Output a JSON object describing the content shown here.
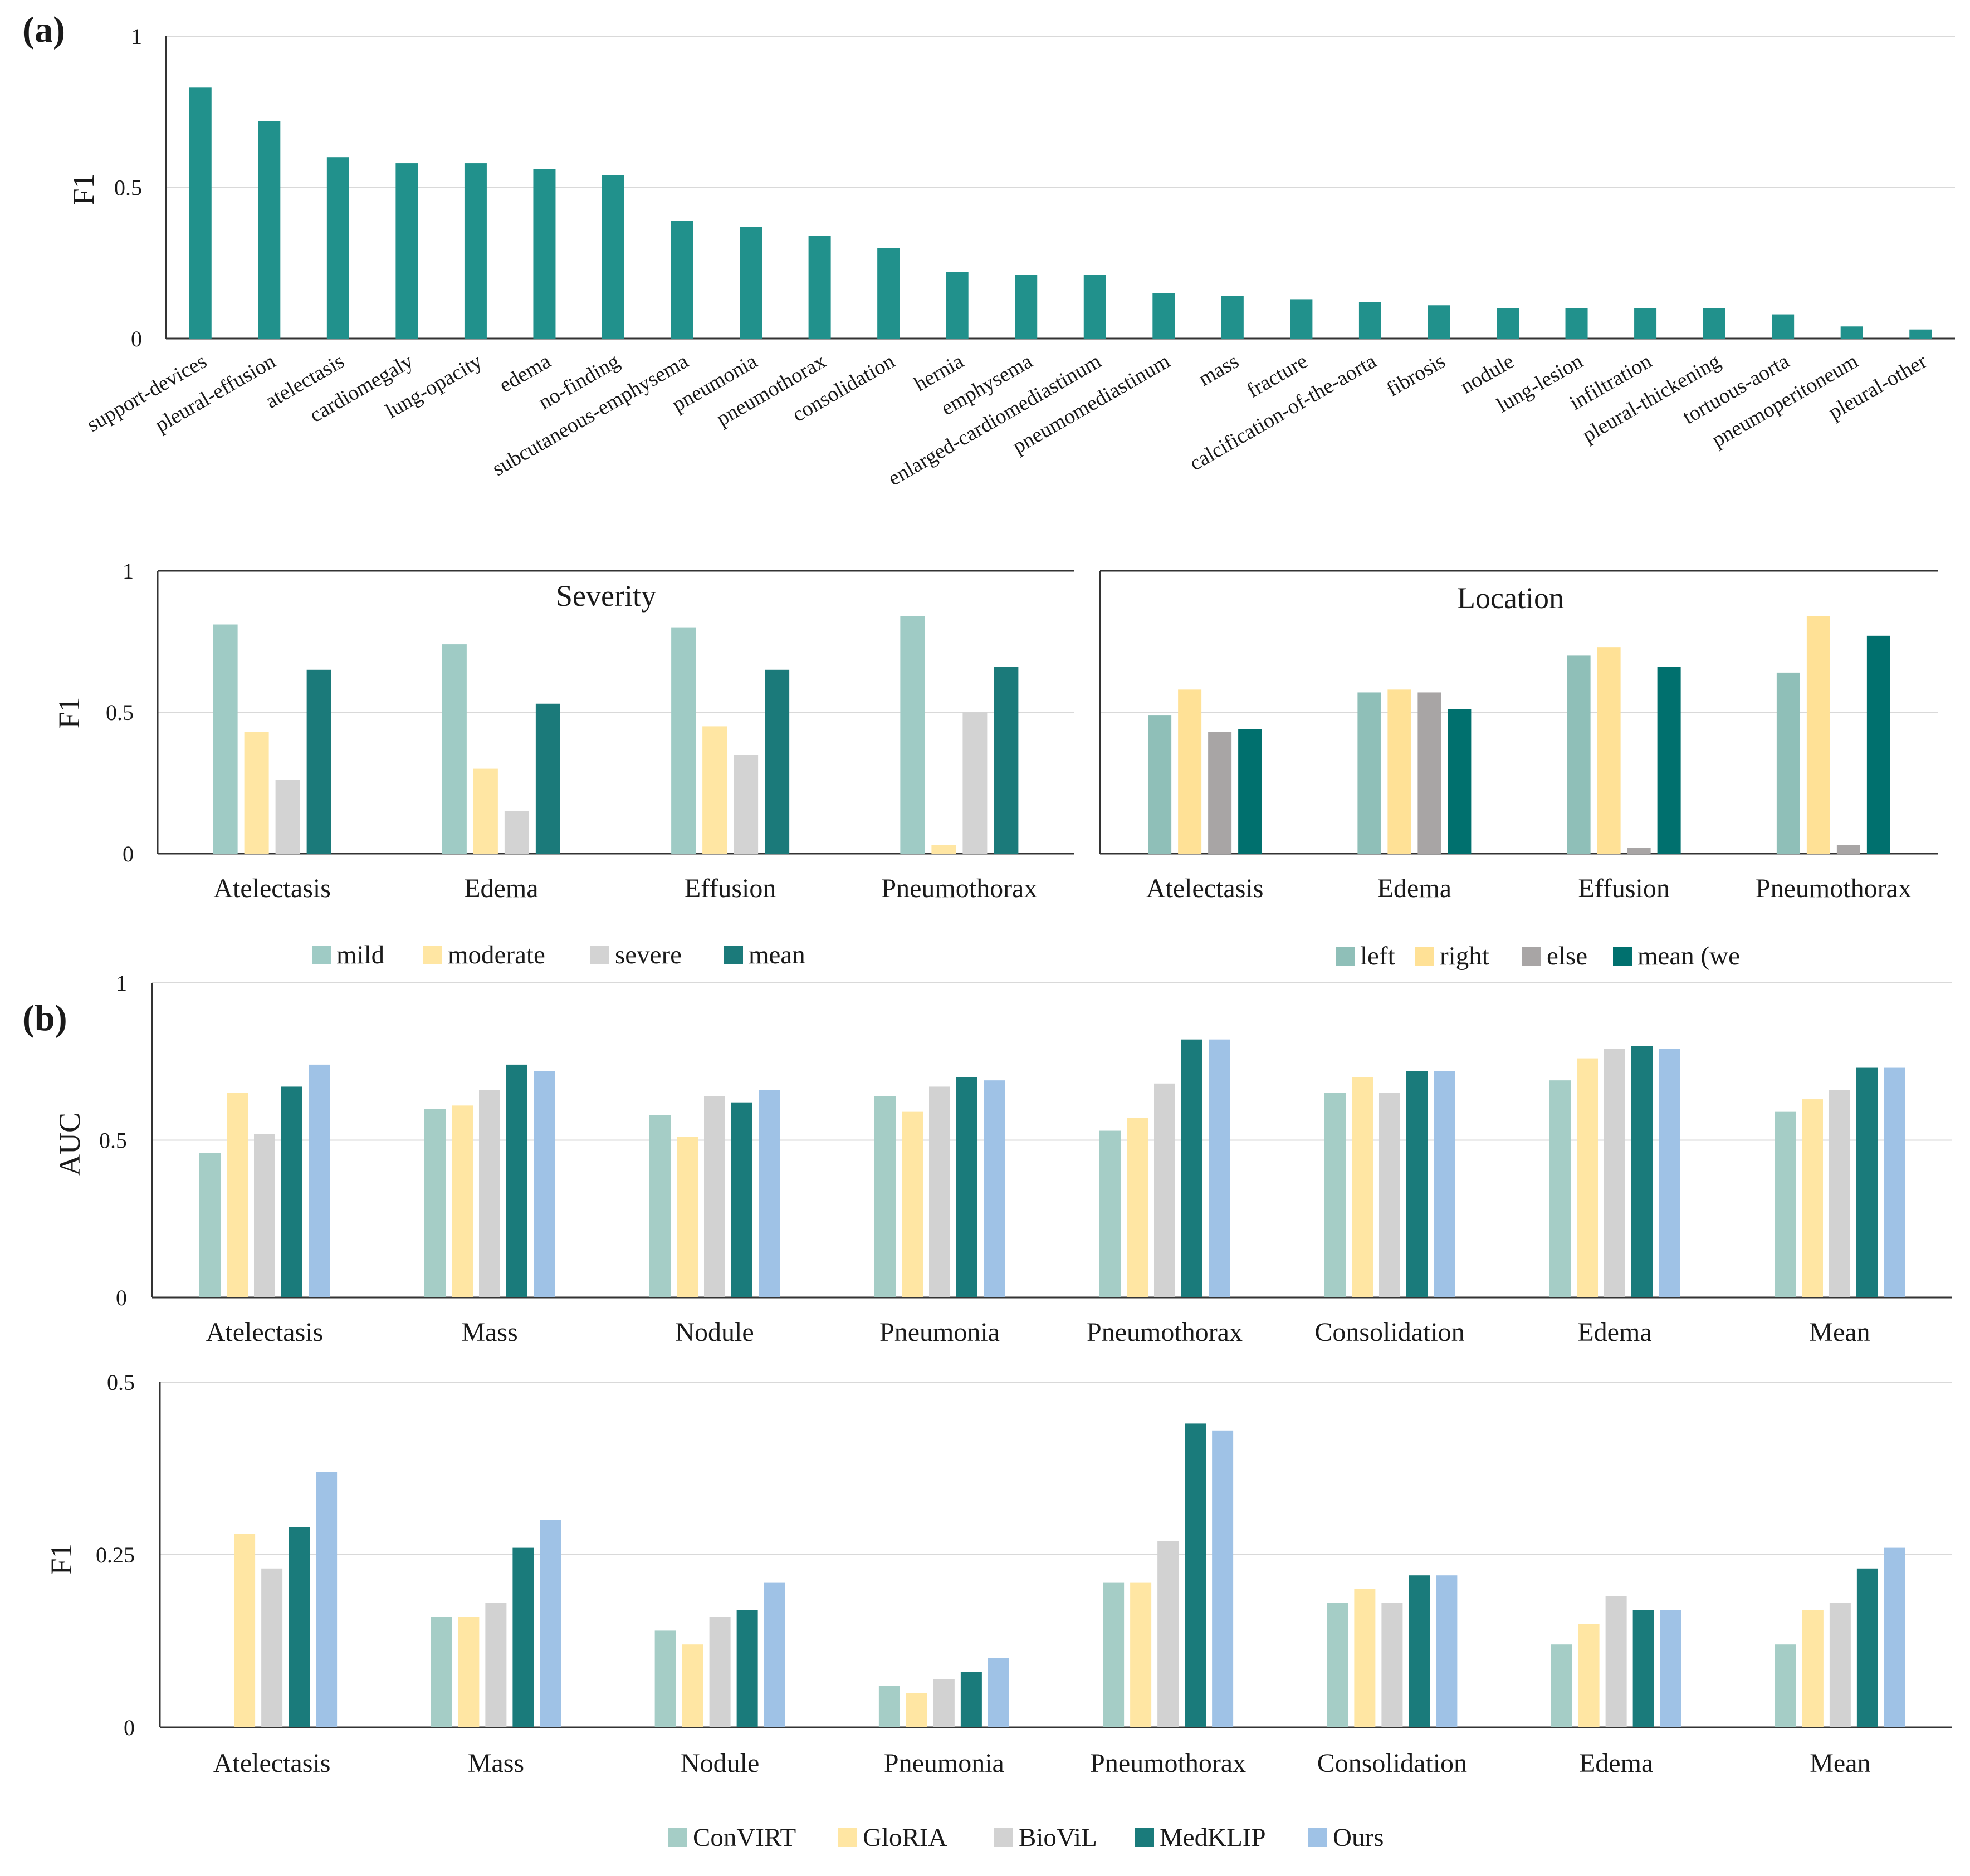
{
  "panel_labels": {
    "a": "(a)",
    "b": "(b)"
  },
  "legends": {
    "severity": [
      "mild",
      "moderate",
      "severe",
      "mean"
    ],
    "location": [
      "left",
      "right",
      "else",
      "mean (we"
    ],
    "methods": [
      "ConVIRT",
      "GloRIA",
      "BioViL",
      "MedKLIP",
      "Ours"
    ]
  },
  "colors": {
    "teal": "#21918c",
    "mild": "#9fcbc5",
    "moderate": "#ffe6a3",
    "severe": "#d3d3d3",
    "mean": "#1b7a7a",
    "left": "#8fbfb8",
    "right": "#ffe196",
    "else": "#a8a5a5",
    "loc_mean": "#00706e",
    "ConVIRT": "#a5cdc6",
    "GloRIA": "#ffe6a3",
    "BioViL": "#d2d2d2",
    "MedKLIP": "#1a7b7b",
    "Ours": "#9fc2e6",
    "grid": "#d9d9d9",
    "axis": "#333333"
  },
  "chart_data": [
    {
      "id": "a_top",
      "type": "bar",
      "title": "",
      "xlabel": "",
      "ylabel": "F1",
      "ylim": [
        0,
        1
      ],
      "yticks": [
        "0",
        "0.5",
        "1"
      ],
      "categories": [
        "support-devices",
        "pleural-effusion",
        "atelectasis",
        "cardiomegaly",
        "lung-opacity",
        "edema",
        "no-finding",
        "subcutaneous-emphysema",
        "pneumonia",
        "pneumothorax",
        "consolidation",
        "hernia",
        "emphysema",
        "enlarged-cardiomediastinum",
        "pneumomediastinum",
        "mass",
        "fracture",
        "calcification-of-the-aorta",
        "fibrosis",
        "nodule",
        "lung-lesion",
        "infiltration",
        "pleural-thickening",
        "tortuous-aorta",
        "pneumoperitoneum",
        "pleural-other"
      ],
      "values": [
        0.83,
        0.72,
        0.6,
        0.58,
        0.58,
        0.56,
        0.54,
        0.39,
        0.37,
        0.34,
        0.3,
        0.22,
        0.21,
        0.21,
        0.15,
        0.14,
        0.13,
        0.12,
        0.11,
        0.1,
        0.1,
        0.1,
        0.1,
        0.08,
        0.04,
        0.03
      ]
    },
    {
      "id": "a_severity",
      "type": "bar",
      "title": "Severity",
      "xlabel": "",
      "ylabel": "F1",
      "ylim": [
        0,
        1
      ],
      "yticks": [
        "0",
        "0.5",
        "1"
      ],
      "categories": [
        "Atelectasis",
        "Edema",
        "Effusion",
        "Pneumothorax"
      ],
      "series": [
        {
          "name": "mild",
          "values": [
            0.81,
            0.74,
            0.8,
            0.84
          ]
        },
        {
          "name": "moderate",
          "values": [
            0.43,
            0.3,
            0.45,
            0.03
          ]
        },
        {
          "name": "severe",
          "values": [
            0.26,
            0.15,
            0.35,
            0.5
          ]
        },
        {
          "name": "mean",
          "values": [
            0.65,
            0.53,
            0.65,
            0.66
          ]
        }
      ]
    },
    {
      "id": "a_location",
      "type": "bar",
      "title": "Location",
      "xlabel": "",
      "ylabel": "",
      "ylim": [
        0,
        1
      ],
      "yticks": [],
      "categories": [
        "Atelectasis",
        "Edema",
        "Effusion",
        "Pneumothorax"
      ],
      "series": [
        {
          "name": "left",
          "values": [
            0.49,
            0.57,
            0.7,
            0.64
          ]
        },
        {
          "name": "right",
          "values": [
            0.58,
            0.58,
            0.73,
            0.84
          ]
        },
        {
          "name": "else",
          "values": [
            0.43,
            0.57,
            0.02,
            0.03
          ]
        },
        {
          "name": "mean (we",
          "values": [
            0.44,
            0.51,
            0.66,
            0.77
          ]
        }
      ]
    },
    {
      "id": "b_auc",
      "type": "bar",
      "title": "",
      "xlabel": "",
      "ylabel": "AUC",
      "ylim": [
        0,
        1
      ],
      "yticks": [
        "0",
        "0.5",
        "1"
      ],
      "categories": [
        "Atelectasis",
        "Mass",
        "Nodule",
        "Pneumonia",
        "Pneumothorax",
        "Consolidation",
        "Edema",
        "Mean"
      ],
      "series": [
        {
          "name": "ConVIRT",
          "values": [
            0.46,
            0.6,
            0.58,
            0.64,
            0.53,
            0.65,
            0.69,
            0.59
          ]
        },
        {
          "name": "GloRIA",
          "values": [
            0.65,
            0.61,
            0.51,
            0.59,
            0.57,
            0.7,
            0.76,
            0.63
          ]
        },
        {
          "name": "BioViL",
          "values": [
            0.52,
            0.66,
            0.64,
            0.67,
            0.68,
            0.65,
            0.79,
            0.66
          ]
        },
        {
          "name": "MedKLIP",
          "values": [
            0.67,
            0.74,
            0.62,
            0.7,
            0.82,
            0.72,
            0.8,
            0.73
          ]
        },
        {
          "name": "Ours",
          "values": [
            0.74,
            0.72,
            0.66,
            0.69,
            0.82,
            0.72,
            0.79,
            0.73
          ]
        }
      ]
    },
    {
      "id": "b_f1",
      "type": "bar",
      "title": "",
      "xlabel": "",
      "ylabel": "F1",
      "ylim": [
        0,
        0.5
      ],
      "yticks": [
        "0",
        "0.25",
        "0.5"
      ],
      "categories": [
        "Atelectasis",
        "Mass",
        "Nodule",
        "Pneumonia",
        "Pneumothorax",
        "Consolidation",
        "Edema",
        "Mean"
      ],
      "series": [
        {
          "name": "ConVIRT",
          "values": [
            0.0,
            0.16,
            0.14,
            0.06,
            0.21,
            0.18,
            0.12,
            0.12
          ]
        },
        {
          "name": "GloRIA",
          "values": [
            0.28,
            0.16,
            0.12,
            0.05,
            0.21,
            0.2,
            0.15,
            0.17
          ]
        },
        {
          "name": "BioViL",
          "values": [
            0.23,
            0.18,
            0.16,
            0.07,
            0.27,
            0.18,
            0.19,
            0.18
          ]
        },
        {
          "name": "MedKLIP",
          "values": [
            0.29,
            0.26,
            0.17,
            0.08,
            0.44,
            0.22,
            0.17,
            0.23
          ]
        },
        {
          "name": "Ours",
          "values": [
            0.37,
            0.3,
            0.21,
            0.1,
            0.43,
            0.22,
            0.17,
            0.26
          ]
        }
      ]
    }
  ]
}
